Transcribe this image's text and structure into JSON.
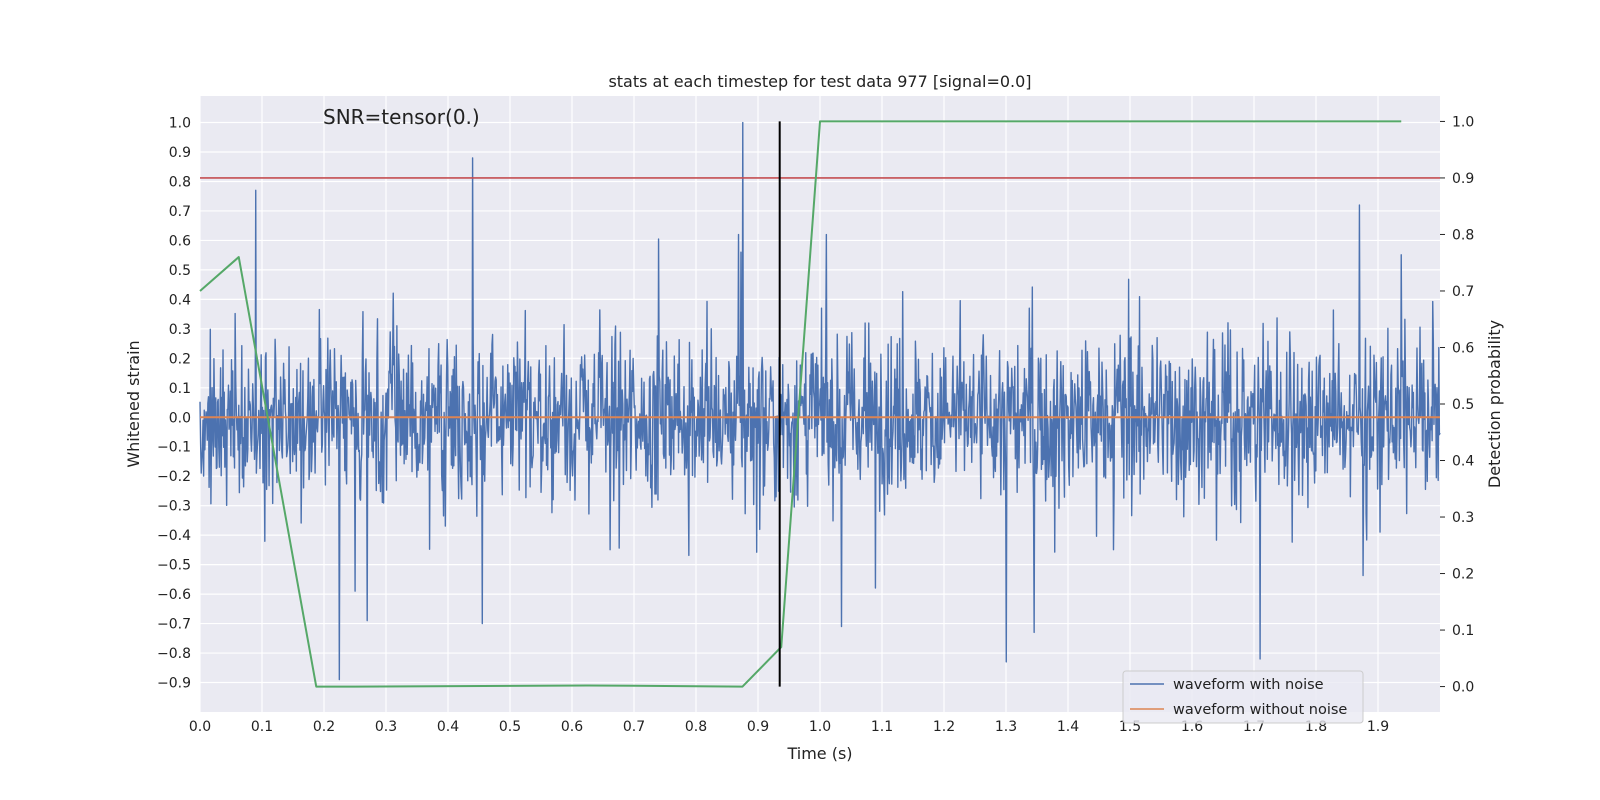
{
  "chart_data": {
    "type": "line",
    "title": "stats at each timestep for test data 977 [signal=0.0]",
    "xlabel": "Time (s)",
    "ylabel": "Whitened strain",
    "y2label": "Detection probability",
    "annotation": "SNR=tensor(0.)",
    "xlim": [
      0.0,
      2.0
    ],
    "ylim": [
      -1.0,
      1.09
    ],
    "y2lim": [
      -0.045,
      1.045
    ],
    "grid": true,
    "legend_position": "bottom-right",
    "x_ticks": [
      "0.0",
      "0.1",
      "0.2",
      "0.3",
      "0.4",
      "0.5",
      "0.6",
      "0.7",
      "0.8",
      "0.9",
      "1.0",
      "1.1",
      "1.2",
      "1.3",
      "1.4",
      "1.5",
      "1.6",
      "1.7",
      "1.8",
      "1.9"
    ],
    "y_ticks": [
      "1.0",
      "0.9",
      "0.8",
      "0.7",
      "0.6",
      "0.5",
      "0.4",
      "0.3",
      "0.2",
      "0.1",
      "0.0",
      "−0.1",
      "−0.2",
      "−0.3",
      "−0.4",
      "−0.5",
      "−0.6",
      "−0.7",
      "−0.8",
      "−0.9"
    ],
    "y2_ticks": [
      "1.0",
      "0.9",
      "0.8",
      "0.7",
      "0.6",
      "0.5",
      "0.4",
      "0.3",
      "0.2",
      "0.1",
      "0.0"
    ],
    "series": [
      {
        "name": "waveform with noise",
        "color": "#4c72b0",
        "axis": "left",
        "kind": "noise",
        "t_start": 0.0,
        "t_end": 2.0,
        "samples": 2048,
        "seed": 977,
        "spikes": [
          [
            0.09,
            0.77
          ],
          [
            0.44,
            0.88
          ],
          [
            0.875,
            1.0
          ],
          [
            0.225,
            -0.89
          ],
          [
            1.71,
            -0.82
          ],
          [
            1.3,
            -0.83
          ],
          [
            0.25,
            -0.59
          ],
          [
            0.27,
            -0.69
          ],
          [
            1.035,
            -0.71
          ],
          [
            1.345,
            -0.73
          ],
          [
            1.87,
            0.72
          ],
          [
            0.455,
            -0.7
          ]
        ]
      },
      {
        "name": "waveform without noise",
        "color": "#dd8452",
        "axis": "left",
        "x": [
          0.0,
          2.0
        ],
        "values": [
          0.0,
          0.0
        ]
      },
      {
        "color": "#55a868",
        "axis": "right",
        "x": [
          0.0,
          0.0625,
          0.1875,
          0.25,
          0.625,
          0.875,
          0.9375,
          1.0,
          1.0625,
          1.9375
        ],
        "values": [
          0.7,
          0.76,
          0.0,
          0.0,
          0.002,
          0.0,
          0.07,
          1.0,
          1.0,
          1.0
        ]
      }
    ],
    "hlines": [
      {
        "axis": "right",
        "value": 0.9,
        "color": "#c44e52"
      }
    ],
    "vlines": [
      {
        "x": 0.935,
        "ymin": 0.0,
        "ymax": 1.0,
        "axis": "right",
        "color": "#000000"
      }
    ]
  }
}
